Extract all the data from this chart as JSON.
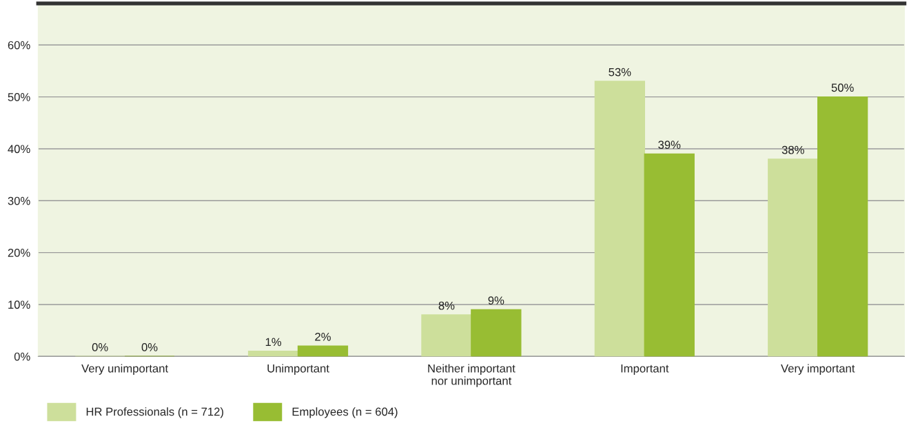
{
  "chart_data": {
    "type": "bar",
    "categories": [
      "Very unimportant",
      "Unimportant",
      "Neither important\nnor unimportant",
      "Important",
      "Very important"
    ],
    "series": [
      {
        "name": "HR Professionals (n = 712)",
        "color": "#cddf9b",
        "values": [
          0,
          1,
          8,
          53,
          38
        ],
        "value_labels": [
          "0%",
          "1%",
          "8%",
          "53%",
          "38%"
        ]
      },
      {
        "name": "Employees (n = 604)",
        "color": "#98bd33",
        "values": [
          0,
          2,
          9,
          39,
          50
        ],
        "value_labels": [
          "0%",
          "2%",
          "9%",
          "39%",
          "50%"
        ]
      }
    ],
    "ylim": [
      0,
      68
    ],
    "yticks": [
      {
        "value": 0,
        "label": "0%"
      },
      {
        "value": 10,
        "label": "10%"
      },
      {
        "value": 20,
        "label": "20%"
      },
      {
        "value": 30,
        "label": "30%"
      },
      {
        "value": 40,
        "label": "40%"
      },
      {
        "value": 50,
        "label": "50%"
      },
      {
        "value": 60,
        "label": "60%"
      }
    ],
    "grid": "y",
    "legend": "bottom"
  }
}
